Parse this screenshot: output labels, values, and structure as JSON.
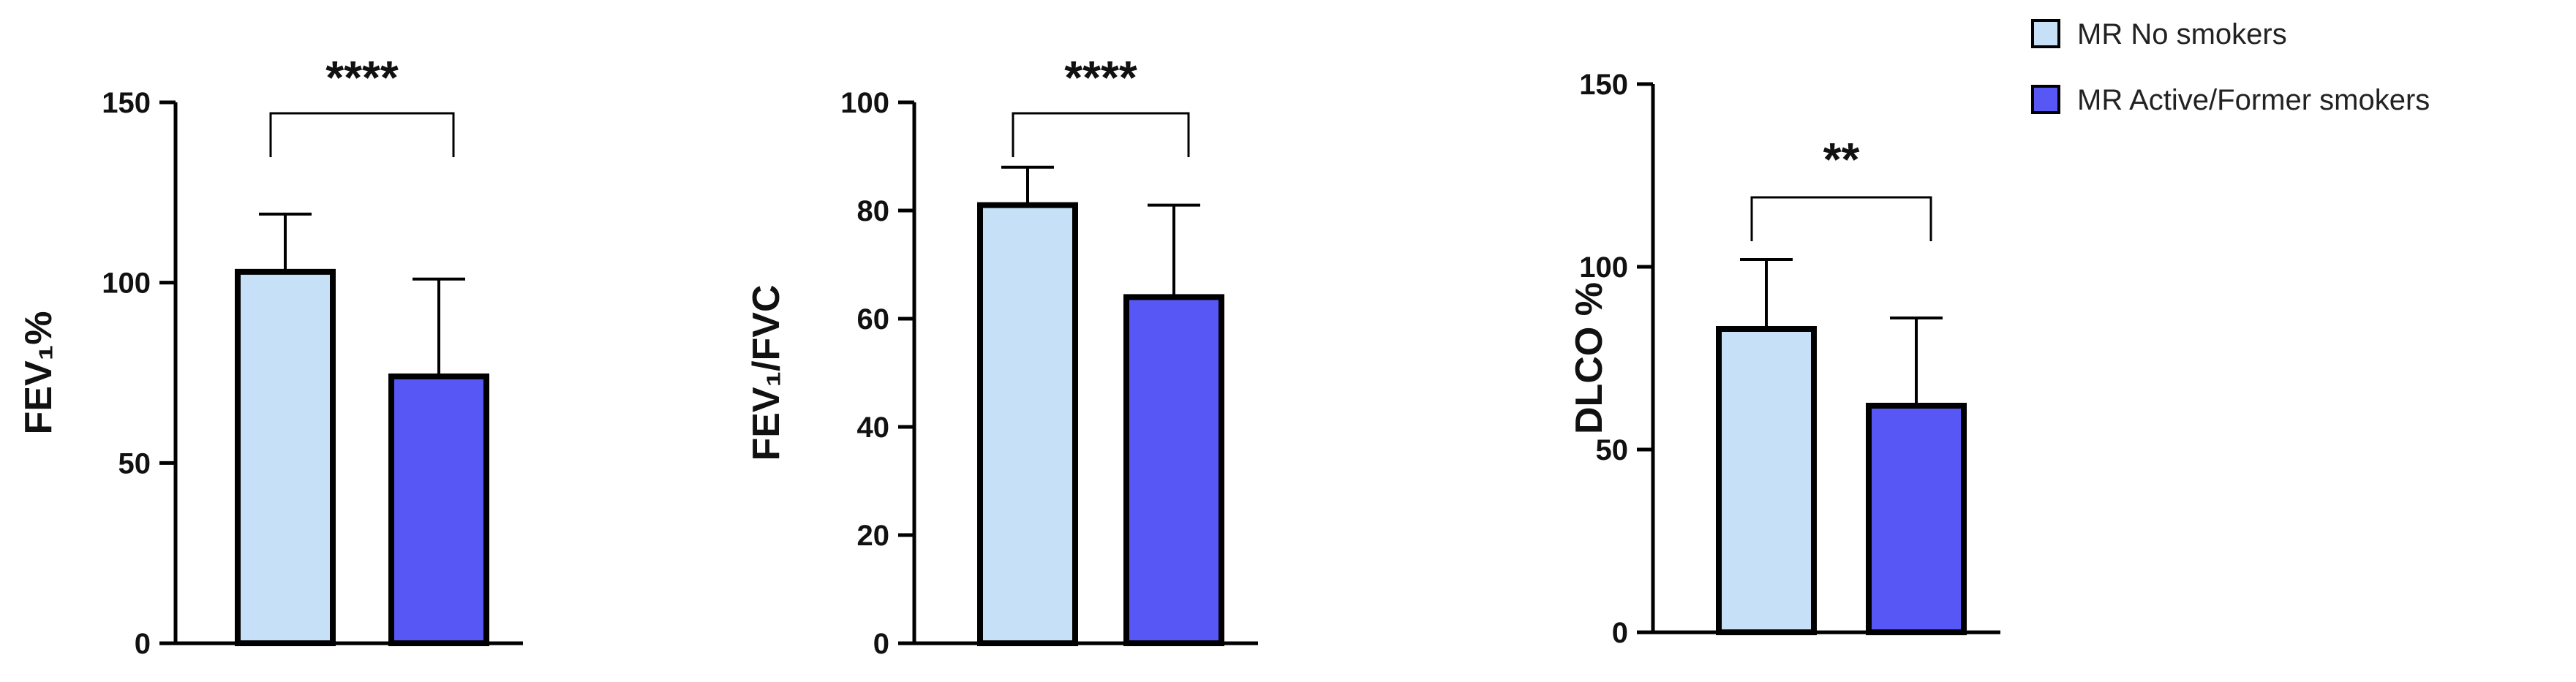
{
  "colors": {
    "no_smokers": "#c5e0f7",
    "smokers": "#5757f5",
    "outline": "#000000"
  },
  "legend": {
    "items": [
      "MR No smokers",
      "MR Active/Former smokers"
    ]
  },
  "chart_data": [
    {
      "type": "bar",
      "ylabel": "FEV₁%",
      "ylim": [
        0,
        150
      ],
      "yticks": [
        0,
        50,
        100,
        150
      ],
      "categories": [
        "MR No smokers",
        "MR Active/Former smokers"
      ],
      "values": [
        103,
        74
      ],
      "error_upper": [
        119,
        101
      ],
      "significance": "****"
    },
    {
      "type": "bar",
      "ylabel": "FEV₁/FVC",
      "ylim": [
        0,
        100
      ],
      "yticks": [
        0,
        20,
        40,
        60,
        80,
        100
      ],
      "categories": [
        "MR No smokers",
        "MR Active/Former smokers"
      ],
      "values": [
        81,
        64
      ],
      "error_upper": [
        88,
        81
      ],
      "significance": "****"
    },
    {
      "type": "bar",
      "ylabel": "DLCO %",
      "ylim": [
        0,
        150
      ],
      "yticks": [
        0,
        50,
        100,
        150
      ],
      "categories": [
        "MR No smokers",
        "MR Active/Former smokers"
      ],
      "values": [
        83,
        62
      ],
      "error_upper": [
        102,
        86
      ],
      "significance": "**"
    }
  ]
}
